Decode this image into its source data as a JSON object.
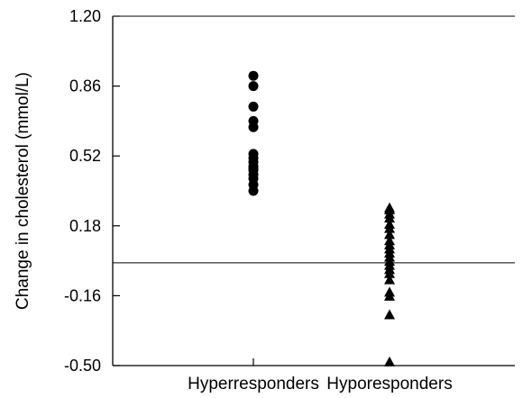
{
  "chart_data": {
    "type": "scatter",
    "title": "",
    "xlabel": "",
    "ylabel": "Change in cholesterol (mmol/L)",
    "ylim": [
      -0.5,
      1.2
    ],
    "y_ticks": [
      "1.20",
      "0.86",
      "0.52",
      "0.18",
      "-0.16",
      "-0.50"
    ],
    "y_tick_values": [
      1.2,
      0.86,
      0.52,
      0.18,
      -0.16,
      -0.5
    ],
    "categories": [
      "Hyperresponders",
      "Hyporesponders"
    ],
    "reference_line": 0.0,
    "grid": false,
    "series": [
      {
        "category": "Hyperresponders",
        "marker": "circle",
        "values": [
          0.91,
          0.86,
          0.76,
          0.69,
          0.66,
          0.53,
          0.51,
          0.49,
          0.47,
          0.46,
          0.45,
          0.43,
          0.41,
          0.38,
          0.35
        ]
      },
      {
        "category": "Hyporesponders",
        "marker": "triangle",
        "values": [
          0.27,
          0.26,
          0.24,
          0.22,
          0.19,
          0.17,
          0.14,
          0.11,
          0.09,
          0.07,
          0.05,
          0.03,
          0.01,
          -0.01,
          -0.03,
          -0.05,
          -0.08,
          -0.14,
          -0.16,
          -0.25,
          -0.48
        ]
      }
    ]
  }
}
